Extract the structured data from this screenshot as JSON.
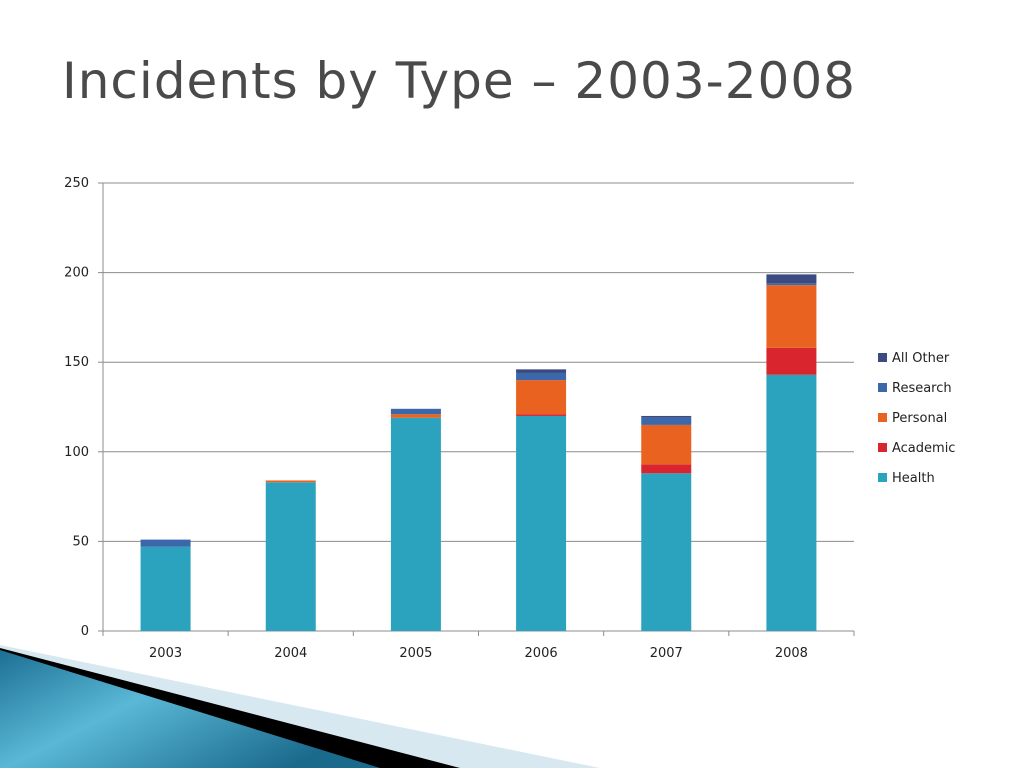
{
  "slide": {
    "title": "Incidents by Type – 2003-2008"
  },
  "chart_data": {
    "type": "bar",
    "stacked": true,
    "categories": [
      "2003",
      "2004",
      "2005",
      "2006",
      "2007",
      "2008"
    ],
    "series": [
      {
        "name": "Health",
        "color": "#2ba3be",
        "values": [
          47,
          83,
          119,
          120,
          88,
          143
        ]
      },
      {
        "name": "Academic",
        "color": "#d9262e",
        "values": [
          0,
          0,
          0,
          1,
          5,
          15
        ]
      },
      {
        "name": "Personal",
        "color": "#e9621f",
        "values": [
          0,
          1,
          2,
          19,
          22,
          35
        ]
      },
      {
        "name": "Research",
        "color": "#3a68aa",
        "values": [
          4,
          0,
          3,
          4,
          4,
          1
        ]
      },
      {
        "name": "All Other",
        "color": "#3b4a80",
        "values": [
          0,
          0,
          0,
          2,
          1,
          5
        ]
      }
    ],
    "legend_order": [
      "All Other",
      "Research",
      "Personal",
      "Academic",
      "Health"
    ],
    "ylim": [
      0,
      250
    ],
    "yticks": [
      0,
      50,
      100,
      150,
      200,
      250
    ],
    "grid": true,
    "legend_position": "right"
  }
}
